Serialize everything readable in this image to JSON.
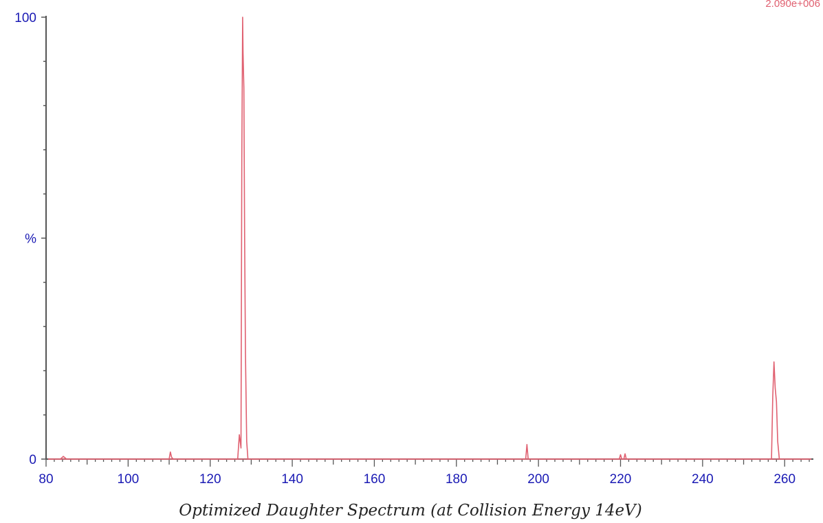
{
  "chart_data": {
    "type": "line",
    "intensity_label": "2.090e+006",
    "caption": "Optimized Daughter Spectrum (at Collision Energy 14eV)",
    "xlim": [
      80,
      267
    ],
    "ylim": [
      0,
      100
    ],
    "x_ticks": [
      80,
      100,
      120,
      140,
      160,
      180,
      200,
      220,
      240,
      260
    ],
    "x_tick_labels": [
      "80",
      "100",
      "120",
      "140",
      "160",
      "180",
      "200",
      "220",
      "240",
      "260"
    ],
    "y_tick_labels": [
      {
        "value": 100,
        "label": "100"
      },
      {
        "value": 50,
        "label": "%"
      },
      {
        "value": 0,
        "label": "0"
      }
    ],
    "grid": false,
    "colors": {
      "axis": "#555555",
      "tick_label": "#1a1ab4",
      "spectrum": "#e06070",
      "intensity_label": "#e06070",
      "caption": "#222222"
    },
    "series": [
      {
        "x": [
          80.5,
          83.5,
          84.2,
          85.0,
          110.0,
          110.3,
          110.6,
          111.0,
          126.7,
          127.1,
          127.5,
          127.7,
          127.9,
          128.0,
          128.2,
          128.4,
          128.6,
          128.9,
          129.2,
          196.9,
          197.2,
          197.5,
          219.7,
          220.0,
          220.3,
          220.8,
          221.1,
          221.4,
          256.8,
          257.1,
          257.4,
          257.7,
          258.0,
          258.3,
          258.7,
          266.5
        ],
        "y": [
          0,
          0,
          0.6,
          0,
          0,
          1.6,
          0.4,
          0,
          0,
          5.5,
          2.5,
          68,
          100,
          92,
          84,
          50,
          24,
          4,
          0,
          0,
          3.3,
          0,
          0,
          1.0,
          0,
          0,
          1.2,
          0,
          0,
          14,
          22,
          16,
          13,
          4,
          0,
          0
        ]
      }
    ]
  }
}
